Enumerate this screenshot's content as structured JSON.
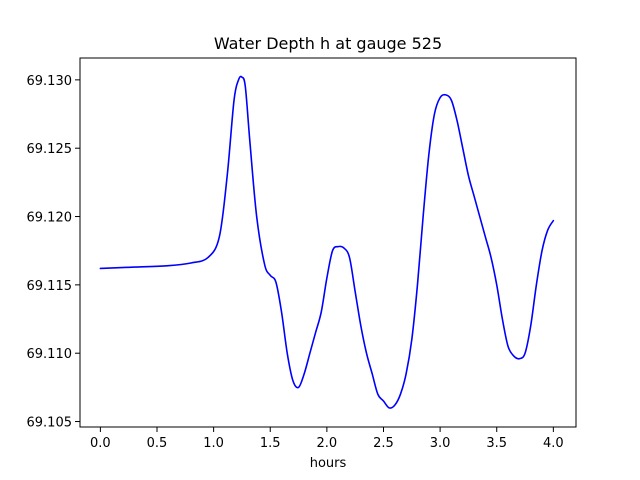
{
  "chart_data": {
    "type": "line",
    "title": "Water Depth h at gauge 525",
    "xlabel": "hours",
    "ylabel": "",
    "xlim": [
      -0.18,
      4.2
    ],
    "ylim": [
      69.1046,
      69.1316
    ],
    "grid": false,
    "xticks": [
      {
        "value": 0.0,
        "label": "0.0"
      },
      {
        "value": 0.5,
        "label": "0.5"
      },
      {
        "value": 1.0,
        "label": "1.0"
      },
      {
        "value": 1.5,
        "label": "1.5"
      },
      {
        "value": 2.0,
        "label": "2.0"
      },
      {
        "value": 2.5,
        "label": "2.5"
      },
      {
        "value": 3.0,
        "label": "3.0"
      },
      {
        "value": 3.5,
        "label": "3.5"
      },
      {
        "value": 4.0,
        "label": "4.0"
      }
    ],
    "yticks": [
      {
        "value": 69.105,
        "label": "69.105"
      },
      {
        "value": 69.11,
        "label": "69.110"
      },
      {
        "value": 69.115,
        "label": "69.115"
      },
      {
        "value": 69.12,
        "label": "69.120"
      },
      {
        "value": 69.125,
        "label": "69.125"
      },
      {
        "value": 69.13,
        "label": "69.130"
      }
    ],
    "series": [
      {
        "color": "#0000ff",
        "x": [
          0.0,
          0.3,
          0.6,
          0.8,
          0.95,
          1.05,
          1.12,
          1.18,
          1.22,
          1.25,
          1.28,
          1.32,
          1.38,
          1.45,
          1.5,
          1.55,
          1.6,
          1.65,
          1.7,
          1.75,
          1.8,
          1.85,
          1.9,
          1.95,
          2.0,
          2.05,
          2.1,
          2.15,
          2.2,
          2.25,
          2.3,
          2.35,
          2.4,
          2.45,
          2.5,
          2.55,
          2.6,
          2.65,
          2.7,
          2.75,
          2.8,
          2.85,
          2.9,
          2.95,
          3.0,
          3.05,
          3.1,
          3.15,
          3.2,
          3.25,
          3.3,
          3.35,
          3.4,
          3.45,
          3.5,
          3.55,
          3.6,
          3.65,
          3.7,
          3.75,
          3.8,
          3.85,
          3.9,
          3.95,
          4.0
        ],
        "y": [
          69.1162,
          69.1163,
          69.1164,
          69.1166,
          69.117,
          69.1185,
          69.123,
          69.1285,
          69.13,
          69.1302,
          69.1295,
          69.1255,
          69.12,
          69.1165,
          69.1157,
          69.1152,
          69.113,
          69.11,
          69.108,
          69.1075,
          69.1085,
          69.11,
          69.1115,
          69.113,
          69.1155,
          69.1175,
          69.1178,
          69.1177,
          69.117,
          69.1145,
          69.112,
          69.11,
          69.1085,
          69.107,
          69.1065,
          69.106,
          69.1062,
          69.107,
          69.1085,
          69.111,
          69.115,
          69.12,
          69.1245,
          69.1275,
          69.1287,
          69.1289,
          69.1285,
          69.127,
          69.125,
          69.123,
          69.1215,
          69.12,
          69.1185,
          69.117,
          69.115,
          69.1125,
          69.1105,
          69.1098,
          69.1096,
          69.11,
          69.112,
          69.115,
          69.1175,
          69.119,
          69.1197
        ]
      }
    ]
  }
}
